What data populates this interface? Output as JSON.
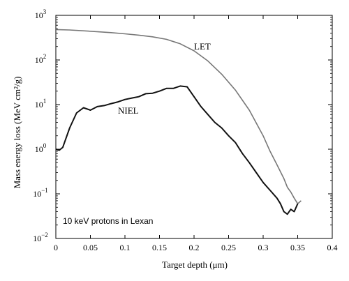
{
  "chart_data": {
    "type": "line",
    "xlabel": "Target depth (μm)",
    "ylabel": "Mass energy loss (MeV cm²/g)",
    "annotation": "10 keV protons in Lexan",
    "xlim": [
      0,
      0.4
    ],
    "ylim": [
      0.01,
      1000
    ],
    "yscale": "log",
    "grid": false,
    "xticks": [
      "0",
      "0.05",
      "0.1",
      "0.15",
      "0.2",
      "0.25",
      "0.3",
      "0.35",
      "0.4"
    ],
    "yticks": [
      {
        "base": "10",
        "exp": "−2",
        "value": 0.01
      },
      {
        "base": "10",
        "exp": "−1",
        "value": 0.1
      },
      {
        "base": "10",
        "exp": "0",
        "value": 1
      },
      {
        "base": "10",
        "exp": "1",
        "value": 10
      },
      {
        "base": "10",
        "exp": "2",
        "value": 100
      },
      {
        "base": "10",
        "exp": "3",
        "value": 1000
      }
    ],
    "series": [
      {
        "name": "LET",
        "color": "#777777",
        "x": [
          0,
          0.02,
          0.05,
          0.08,
          0.1,
          0.12,
          0.14,
          0.16,
          0.18,
          0.2,
          0.22,
          0.24,
          0.26,
          0.28,
          0.3,
          0.31,
          0.32,
          0.33,
          0.335,
          0.34,
          0.345,
          0.35,
          0.355
        ],
        "y": [
          480,
          470,
          440,
          410,
          385,
          360,
          330,
          290,
          230,
          160,
          95,
          48,
          21,
          7.5,
          2.0,
          0.9,
          0.45,
          0.22,
          0.14,
          0.11,
          0.08,
          0.06,
          0.07
        ]
      },
      {
        "name": "NIEL",
        "color": "#111111",
        "x": [
          0,
          0.005,
          0.01,
          0.02,
          0.03,
          0.04,
          0.05,
          0.06,
          0.07,
          0.08,
          0.09,
          0.1,
          0.11,
          0.12,
          0.13,
          0.14,
          0.15,
          0.16,
          0.17,
          0.18,
          0.19,
          0.2,
          0.21,
          0.22,
          0.23,
          0.24,
          0.25,
          0.26,
          0.27,
          0.28,
          0.29,
          0.3,
          0.31,
          0.32,
          0.325,
          0.33,
          0.335,
          0.34,
          0.345,
          0.35
        ],
        "y": [
          1.0,
          0.95,
          1.1,
          3.0,
          6.5,
          8.5,
          7.5,
          9.0,
          9.5,
          10.5,
          11.5,
          13.0,
          14.0,
          15.0,
          17.5,
          18.0,
          20.0,
          23.0,
          23.0,
          26.0,
          25.0,
          15.0,
          9.0,
          6.0,
          4.0,
          3.0,
          2.0,
          1.4,
          0.8,
          0.5,
          0.3,
          0.18,
          0.12,
          0.08,
          0.06,
          0.04,
          0.035,
          0.045,
          0.04,
          0.06
        ]
      }
    ]
  }
}
